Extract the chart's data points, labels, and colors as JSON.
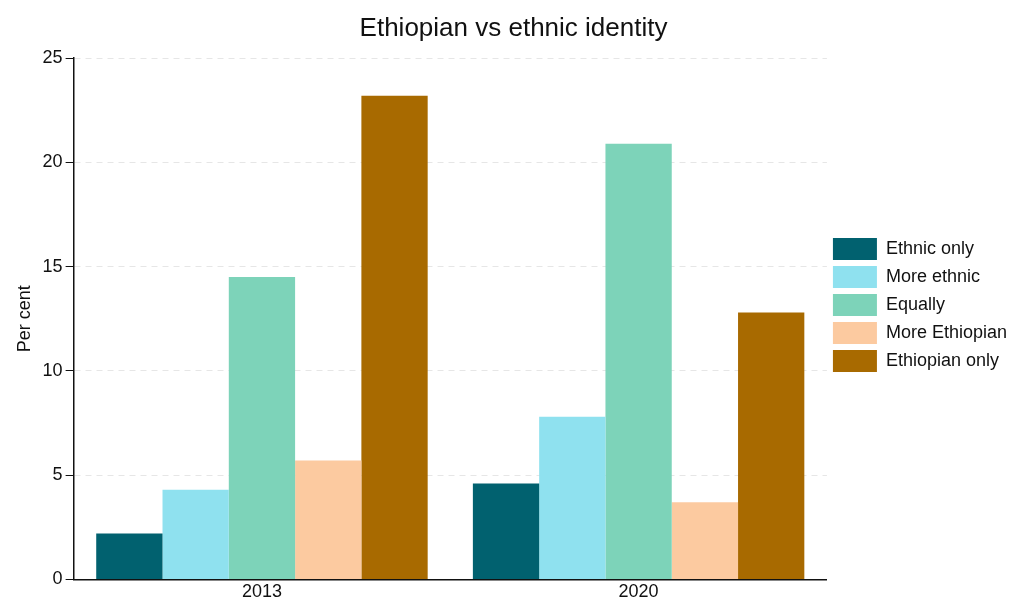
{
  "chart_data": {
    "type": "bar",
    "title": "Ethiopian vs ethnic identity",
    "ylabel": "Per cent",
    "categories": [
      "2013",
      "2020"
    ],
    "series": [
      {
        "name": "Ethnic only",
        "color": "#01616f",
        "values": [
          2.2,
          4.6
        ]
      },
      {
        "name": "More ethnic",
        "color": "#8fe1ef",
        "values": [
          4.3,
          7.8
        ]
      },
      {
        "name": "Equally",
        "color": "#7dd3b9",
        "values": [
          14.5,
          20.9
        ]
      },
      {
        "name": "More Ethiopian",
        "color": "#fccaa0",
        "values": [
          5.7,
          3.7
        ]
      },
      {
        "name": "Ethiopian only",
        "color": "#a86a00",
        "values": [
          23.2,
          12.8
        ]
      }
    ],
    "ylim": [
      0,
      25
    ],
    "yticks": [
      0,
      5,
      10,
      15,
      20,
      25
    ],
    "grid": "y",
    "legend": "right"
  }
}
